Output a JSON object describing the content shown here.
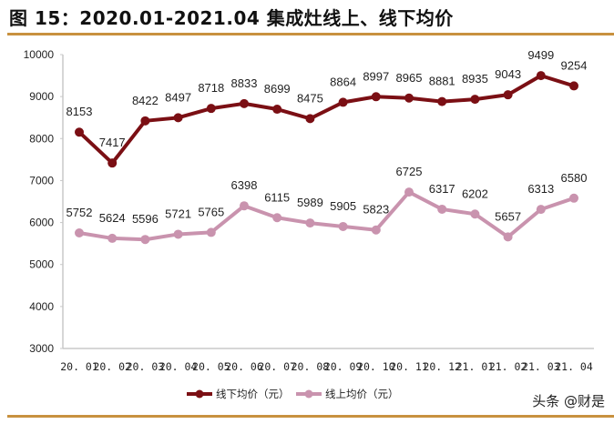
{
  "title": "图 15：2020.01-2021.04 集成灶线上、线下均价",
  "watermark": "头条 @财是",
  "colors": {
    "offline": "#7B0F14",
    "online": "#C993AE",
    "rule": "#C8913F",
    "axis": "#C8C8C8"
  },
  "chart_data": {
    "type": "line",
    "title": "2020.01-2021.04 集成灶线上、线下均价",
    "xlabel": "",
    "ylabel": "",
    "ylim": [
      3000,
      10000
    ],
    "yticks": [
      3000,
      4000,
      5000,
      6000,
      7000,
      8000,
      9000,
      10000
    ],
    "grid": false,
    "legend_position": "bottom",
    "categories": [
      "20.01",
      "20.02",
      "20.03",
      "20.04",
      "20.05",
      "20.06",
      "20.07",
      "20.08",
      "20.09",
      "20.10",
      "20.11",
      "20.12",
      "21.01",
      "21.02",
      "21.03",
      "21.04"
    ],
    "series": [
      {
        "name": "线下均价（元）",
        "color": "#7B0F14",
        "values": [
          8153,
          7417,
          8422,
          8497,
          8718,
          8833,
          8699,
          8475,
          8864,
          8997,
          8965,
          8881,
          8935,
          9043,
          9499,
          9254
        ]
      },
      {
        "name": "线上均价（元）",
        "color": "#C993AE",
        "values": [
          5752,
          5624,
          5596,
          5721,
          5765,
          6398,
          6115,
          5989,
          5905,
          5823,
          6725,
          6317,
          6202,
          5657,
          6313,
          6580
        ]
      }
    ]
  }
}
